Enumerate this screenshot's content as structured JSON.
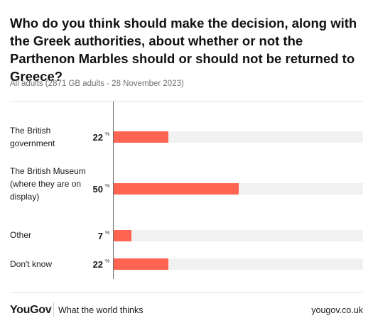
{
  "chart_data": {
    "type": "bar",
    "title": "Who do you think should make the decision, along with the Greek authorities, about whether or not the Parthenon Marbles should or should not be returned to Greece?",
    "subtitle": "All adults (2871 GB adults - 28 November 2023)",
    "categories": [
      "The British government",
      "The British Museum (where they are on display)",
      "Other",
      "Don't know"
    ],
    "values": [
      22,
      50,
      7,
      22
    ],
    "value_suffix": "%",
    "xlim": [
      0,
      100
    ],
    "grid": false,
    "colors": {
      "bar": "#ff6453",
      "track": "#f1f1f1"
    }
  },
  "footer": {
    "logo": "YouGov",
    "tagline": "What the world thinks",
    "url": "yougov.co.uk"
  }
}
